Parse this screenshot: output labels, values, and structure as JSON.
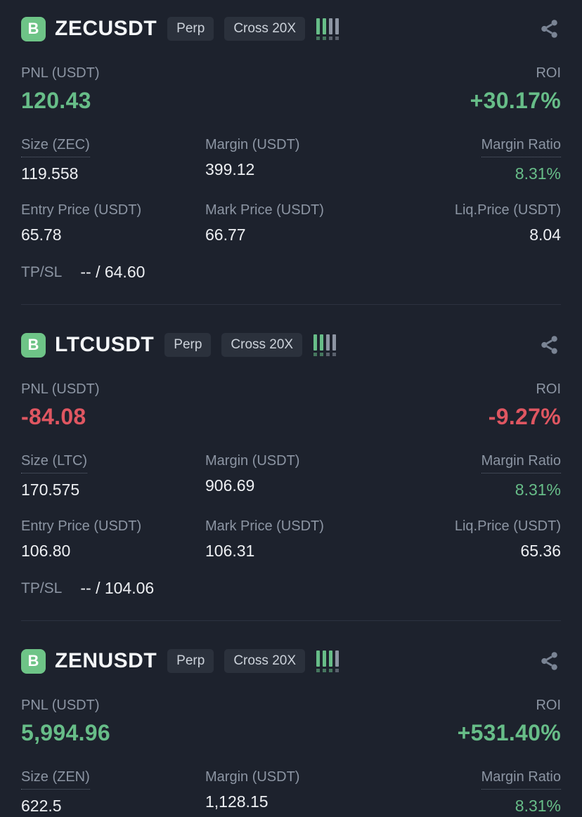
{
  "branding": {
    "logo_letter": "B"
  },
  "labels": {
    "pnl": "PNL (USDT)",
    "roi": "ROI",
    "margin": "Margin (USDT)",
    "margin_ratio": "Margin Ratio",
    "entry_price": "Entry Price (USDT)",
    "mark_price": "Mark Price (USDT)",
    "liq_price": "Liq.Price (USDT)",
    "tpsl": "TP/SL",
    "perp": "Perp"
  },
  "colors": {
    "background": "#1d222d",
    "positive": "#67bd88",
    "negative": "#df5661",
    "logo_green": "#6ec487",
    "label_gray": "#8c95a3"
  },
  "positions": [
    {
      "symbol": "ZECUSDT",
      "leverage": "Cross 20X",
      "signal_bars": {
        "green": 2,
        "total": 4
      },
      "trend": "up",
      "pnl": "120.43",
      "roi": "+30.17%",
      "size_label": "Size (ZEC)",
      "size": "119.558",
      "margin": "399.12",
      "margin_ratio": "8.31%",
      "entry_price": "65.78",
      "mark_price": "66.77",
      "liq_price": "8.04",
      "tp_sl": "-- / 64.60"
    },
    {
      "symbol": "LTCUSDT",
      "leverage": "Cross 20X",
      "signal_bars": {
        "green": 2,
        "total": 4
      },
      "trend": "down",
      "pnl": "-84.08",
      "roi": "-9.27%",
      "size_label": "Size (LTC)",
      "size": "170.575",
      "margin": "906.69",
      "margin_ratio": "8.31%",
      "entry_price": "106.80",
      "mark_price": "106.31",
      "liq_price": "65.36",
      "tp_sl": "-- / 104.06"
    },
    {
      "symbol": "ZENUSDT",
      "leverage": "Cross 20X",
      "signal_bars": {
        "green": 3,
        "total": 4
      },
      "trend": "up",
      "pnl": "5,994.96",
      "roi": "+531.40%",
      "size_label": "Size (ZEN)",
      "size": "622.5",
      "margin": "1,128.15",
      "margin_ratio": "8.31%"
    }
  ]
}
